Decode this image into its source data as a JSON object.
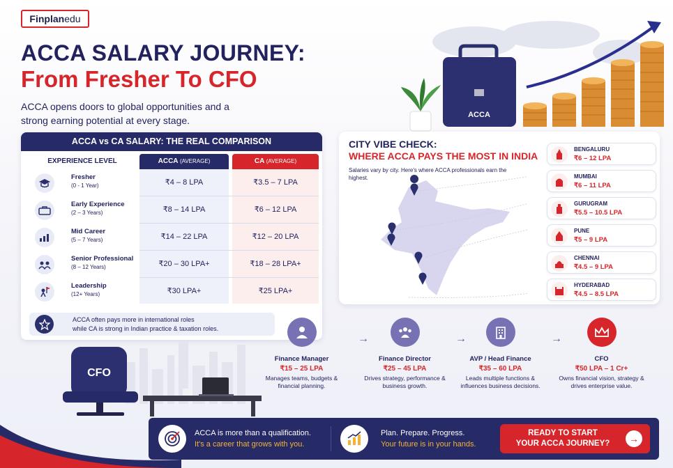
{
  "logo": {
    "text_main": "Finplan",
    "text_accent": " edu"
  },
  "title": {
    "line1": "ACCA SALARY JOURNEY:",
    "line2": "From Fresher To CFO"
  },
  "subtitle": "ACCA opens doors to global opportunities and a strong earning potential at every stage.",
  "hero": {
    "briefcase_label": "ACCA"
  },
  "comparison": {
    "heading": "ACCA vs CA SALARY: THE REAL COMPARISON",
    "col_experience": "EXPERIENCE LEVEL",
    "col_acca": "ACCA",
    "col_acca_note": "(AVERAGE)",
    "col_ca": "CA",
    "col_ca_note": "(AVERAGE)",
    "rows": [
      {
        "level": "Fresher",
        "years": "(0 - 1 Year)",
        "acca": "₹4 – 8 LPA",
        "ca": "₹3.5 – 7 LPA",
        "icon": "graduation-cap-icon"
      },
      {
        "level": "Early Experience",
        "years": "(2 – 3 Years)",
        "acca": "₹8 – 14 LPA",
        "ca": "₹6 – 12 LPA",
        "icon": "briefcase-icon"
      },
      {
        "level": "Mid Career",
        "years": "(5 – 7 Years)",
        "acca": "₹14 – 22 LPA",
        "ca": "₹12 – 20 LPA",
        "icon": "growth-chart-icon"
      },
      {
        "level": "Senior Professional",
        "years": "(8 – 12 Years)",
        "acca": "₹20 – 30 LPA+",
        "ca": "₹18 – 28 LPA+",
        "icon": "team-icon"
      },
      {
        "level": "Leadership",
        "years": "(12+ Years)",
        "acca": "₹30 LPA+",
        "ca": "₹25 LPA+",
        "icon": "leader-flag-icon"
      }
    ],
    "note_line1": "ACCA often pays more in international roles",
    "note_line2": "while CA is strong in Indian practice & taxation roles."
  },
  "city": {
    "heading1": "CITY VIBE CHECK:",
    "heading2": "WHERE ACCA PAYS THE MOST IN INDIA",
    "description": "Salaries vary by city. Here's where ACCA professionals earn the highest.",
    "items": [
      {
        "name": "BENGALURU",
        "salary": "₹6 – 12 LPA"
      },
      {
        "name": "MUMBAI",
        "salary": "₹6 – 11 LPA"
      },
      {
        "name": "GURUGRAM",
        "salary": "₹5.5 – 10.5 LPA"
      },
      {
        "name": "PUNE",
        "salary": "₹5 – 9 LPA"
      },
      {
        "name": "CHENNAI",
        "salary": "₹4.5 – 9 LPA"
      },
      {
        "name": "HYDERABAD",
        "salary": "₹4.5 – 8.5 LPA"
      }
    ]
  },
  "office": {
    "chair_label": "CFO"
  },
  "career_path": [
    {
      "role": "Finance Manager",
      "salary": "₹15 – 25 LPA",
      "desc": "Manages teams, budgets & financial planning.",
      "icon": "manager-icon"
    },
    {
      "role": "Finance Director",
      "salary": "₹25 – 45 LPA",
      "desc": "Drives strategy, performance & business growth.",
      "icon": "group-icon"
    },
    {
      "role": "AVP / Head Finance",
      "salary": "₹35 – 60 LPA",
      "desc": "Leads multiple functions & influences business decisions.",
      "icon": "building-icon"
    },
    {
      "role": "CFO",
      "salary": "₹50 LPA – 1 Cr+",
      "desc": "Owns financial vision, strategy & drives enterprise value.",
      "icon": "crown-icon"
    }
  ],
  "footer": {
    "block1_line1": "ACCA is more than a qualification.",
    "block1_line2": "It's a career that grows with you.",
    "block2_line1": "Plan. Prepare. Progress.",
    "block2_line2": "Your future is in your hands.",
    "cta_line1": "READY TO START",
    "cta_line2": "YOUR ACCA JOURNEY?"
  },
  "colors": {
    "navy": "#262a66",
    "red": "#d7262b",
    "gold": "#f4b234",
    "purple": "#7772b3"
  }
}
